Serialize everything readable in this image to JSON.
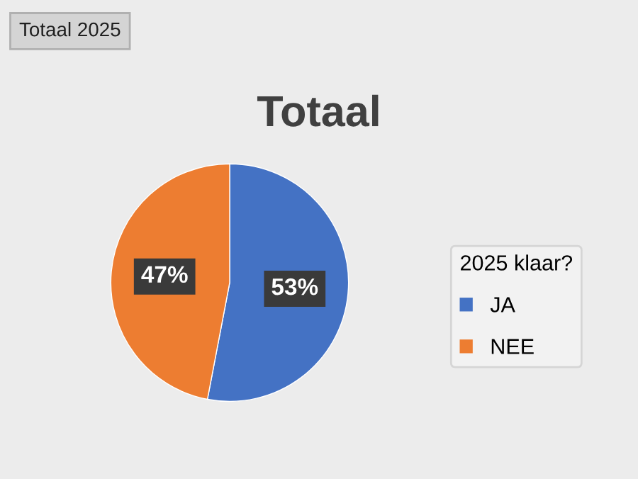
{
  "chart_data": {
    "type": "pie",
    "title": "Totaal",
    "categories": [
      "JA",
      "NEE"
    ],
    "values": [
      53,
      47
    ],
    "colors": [
      "#4472c4",
      "#ed7d31"
    ],
    "value_labels": [
      "53%",
      "47%"
    ],
    "legend": "right",
    "legend_title": "2025 klaar?",
    "annotations": [
      "Totaal 2025"
    ]
  }
}
